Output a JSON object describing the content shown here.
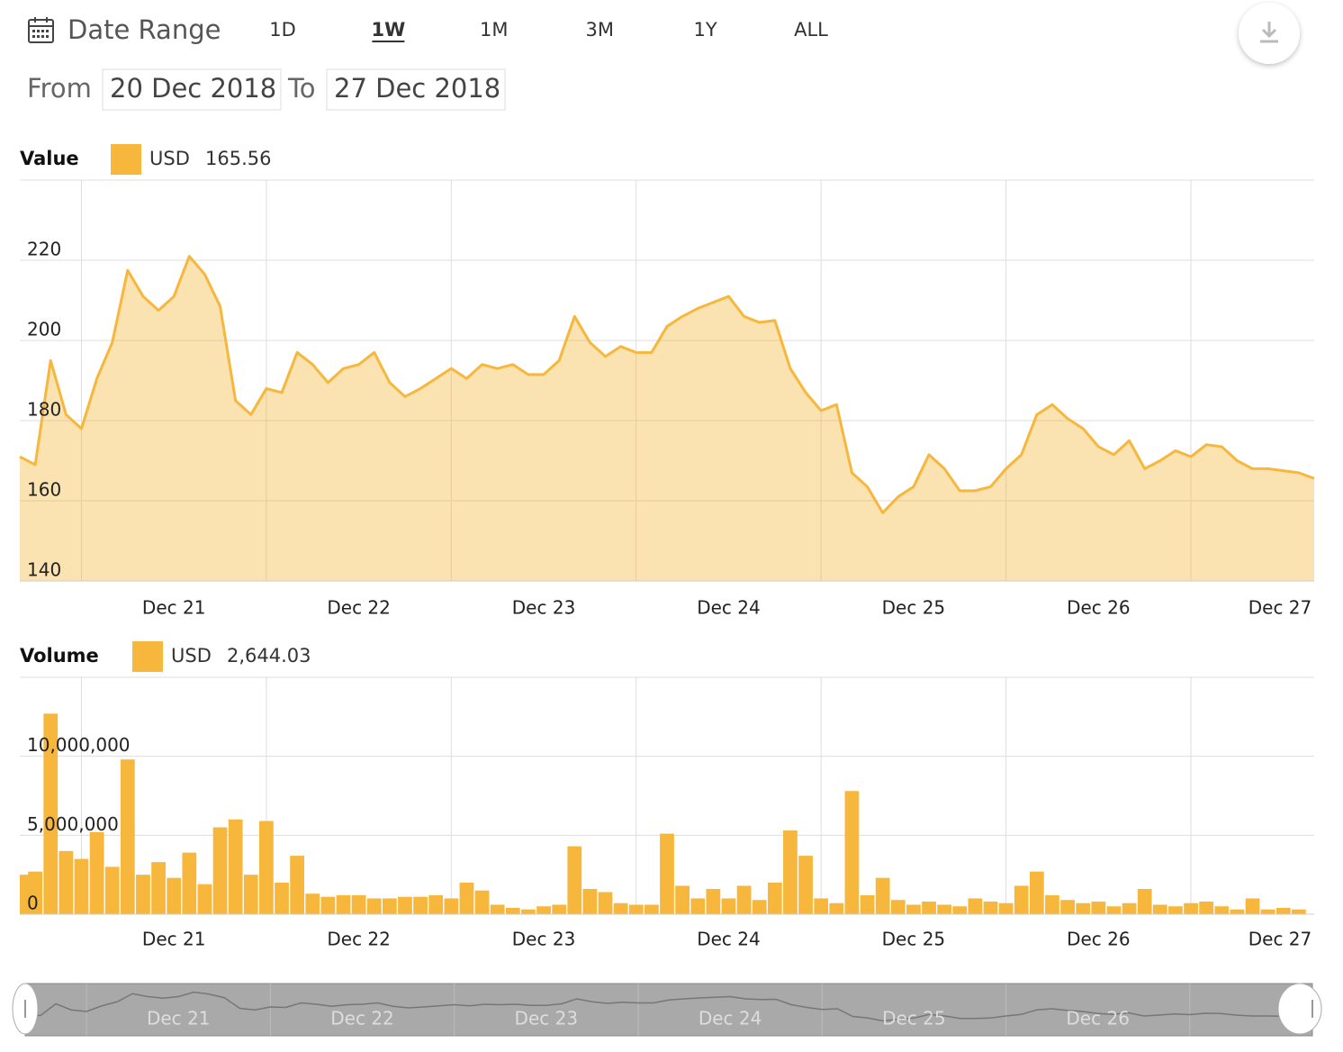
{
  "toolbar": {
    "label": "Date Range",
    "ranges": [
      "1D",
      "1W",
      "1M",
      "3M",
      "1Y",
      "ALL"
    ],
    "selected": "1W"
  },
  "period": {
    "from_label": "From",
    "from": "20 Dec 2018",
    "to_label": "To",
    "to": "27 Dec 2018"
  },
  "chart_data": [
    {
      "type": "area",
      "title": "Value",
      "categories": [
        null,
        null,
        null,
        null,
        null,
        null,
        null,
        null,
        null,
        null,
        "Dec 21",
        null,
        null,
        null,
        null,
        null,
        null,
        null,
        null,
        null,
        null,
        null,
        "Dec 22",
        null,
        null,
        null,
        null,
        null,
        null,
        null,
        null,
        null,
        null,
        null,
        "Dec 23",
        null,
        null,
        null,
        null,
        null,
        null,
        null,
        null,
        null,
        null,
        null,
        "Dec 24",
        null,
        null,
        null,
        null,
        null,
        null,
        null,
        null,
        null,
        null,
        null,
        "Dec 25",
        null,
        null,
        null,
        null,
        null,
        null,
        null,
        null,
        null,
        null,
        null,
        "Dec 26",
        null,
        null,
        null,
        null,
        null,
        null,
        null,
        null,
        null,
        null,
        null,
        "Dec 27",
        null,
        null
      ],
      "series": [
        {
          "name": "USD",
          "color": "#f6b73c",
          "values": [
            171,
            169,
            195,
            181.5,
            178,
            190.5,
            199.5,
            217.5,
            211,
            207.5,
            211,
            221,
            216.5,
            208.5,
            185,
            181.5,
            188,
            187,
            197,
            194,
            189.5,
            193,
            194,
            197,
            189.5,
            186,
            188,
            190.5,
            193,
            190.5,
            194,
            193,
            194,
            191.5,
            191.5,
            195,
            206,
            199.5,
            196,
            198.5,
            197,
            197,
            203.5,
            206,
            208,
            209.5,
            211,
            206,
            204.5,
            205,
            193,
            187,
            182.5,
            184,
            167,
            163.5,
            157,
            161,
            163.5,
            171.5,
            168,
            162.5,
            162.5,
            163.5,
            168,
            171.5,
            181.5,
            184,
            180.5,
            178,
            173.5,
            171.5,
            175,
            168,
            170,
            172.5,
            171,
            174,
            173.5,
            170,
            168,
            168,
            167.5,
            167,
            165.56
          ]
        }
      ],
      "legend_value": 165.56,
      "ylim": [
        140,
        240
      ],
      "yticks": [
        140,
        160,
        180,
        200,
        220
      ],
      "grid": true
    },
    {
      "type": "bar",
      "title": "Volume",
      "categories": [
        null,
        null,
        null,
        null,
        null,
        null,
        null,
        null,
        null,
        null,
        "Dec 21",
        null,
        null,
        null,
        null,
        null,
        null,
        null,
        null,
        null,
        null,
        null,
        "Dec 22",
        null,
        null,
        null,
        null,
        null,
        null,
        null,
        null,
        null,
        null,
        null,
        "Dec 23",
        null,
        null,
        null,
        null,
        null,
        null,
        null,
        null,
        null,
        null,
        null,
        "Dec 24",
        null,
        null,
        null,
        null,
        null,
        null,
        null,
        null,
        null,
        null,
        null,
        "Dec 25",
        null,
        null,
        null,
        null,
        null,
        null,
        null,
        null,
        null,
        null,
        null,
        "Dec 26",
        null,
        null,
        null,
        null,
        null,
        null,
        null,
        null,
        null,
        null,
        null,
        "Dec 27",
        null,
        null
      ],
      "series": [
        {
          "name": "USD",
          "color": "#f6b73c",
          "values": [
            2500000,
            2700000,
            12700000,
            4000000,
            3500000,
            5200000,
            3000000,
            9800000,
            2500000,
            3300000,
            2300000,
            3900000,
            1900000,
            5500000,
            6000000,
            2500000,
            5900000,
            2000000,
            3700000,
            1300000,
            1100000,
            1200000,
            1200000,
            1000000,
            1000000,
            1100000,
            1100000,
            1200000,
            1000000,
            2000000,
            1500000,
            600000,
            400000,
            300000,
            500000,
            600000,
            4300000,
            1600000,
            1400000,
            700000,
            600000,
            600000,
            5100000,
            1800000,
            1000000,
            1600000,
            1000000,
            1800000,
            900000,
            2000000,
            5300000,
            3700000,
            1000000,
            700000,
            7800000,
            1200000,
            2300000,
            900000,
            600000,
            800000,
            600000,
            500000,
            1000000,
            800000,
            700000,
            1800000,
            2700000,
            1200000,
            900000,
            700000,
            800000,
            500000,
            700000,
            1600000,
            600000,
            500000,
            700000,
            800000,
            500000,
            300000,
            1000000,
            300000,
            400000,
            300000,
            2644.03
          ]
        }
      ],
      "legend_value": {
        "value": 2644.03,
        "label": "2,644.03"
      },
      "ylim": [
        0,
        15000000
      ],
      "yticks": [
        0,
        {
          "value": 5000000,
          "label": "5,000,000"
        },
        {
          "value": 10000000,
          "label": "10,000,000"
        }
      ],
      "grid": true
    }
  ]
}
